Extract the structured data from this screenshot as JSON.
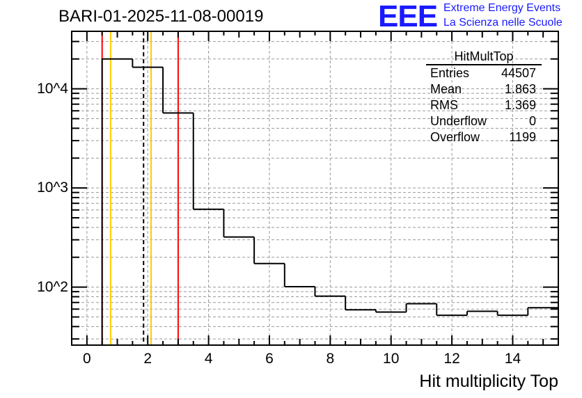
{
  "title": "BARI-01-2025-11-08-00019",
  "logo": {
    "mark": "EEE",
    "line1": "Extreme Energy Events",
    "line2": "La Scienza nelle Scuole"
  },
  "stats": {
    "name": "HitMultTop",
    "rows": [
      {
        "label": "Entries",
        "value": "44507"
      },
      {
        "label": "Mean",
        "value": "1.863"
      },
      {
        "label": "RMS",
        "value": "1.369"
      },
      {
        "label": "Underflow",
        "value": "0"
      },
      {
        "label": "Overflow",
        "value": "1199"
      }
    ]
  },
  "chart_data": {
    "type": "histogram",
    "title": "BARI-01-2025-11-08-00019",
    "xlabel": "Hit multiplicity Top",
    "ylabel": "",
    "xlim": [
      -0.5,
      15.5
    ],
    "ylim": [
      26,
      38000
    ],
    "yscale": "log",
    "grid": true,
    "bin_edges": [
      -0.5,
      0.5,
      1.5,
      2.5,
      3.5,
      4.5,
      5.5,
      6.5,
      7.5,
      8.5,
      9.5,
      10.5,
      11.5,
      12.5,
      13.5,
      14.5,
      15.5
    ],
    "values": [
      0,
      20000,
      16500,
      5700,
      610,
      320,
      173,
      101,
      81,
      59,
      56,
      68,
      52,
      57,
      52,
      62
    ],
    "x_ticks": [
      "0",
      "2",
      "4",
      "6",
      "8",
      "10",
      "12",
      "14"
    ],
    "x_tick_values": [
      0,
      2,
      4,
      6,
      8,
      10,
      12,
      14
    ],
    "y_ticks": [
      "10^2",
      "10^3",
      "10^4"
    ],
    "y_tick_values": [
      100,
      1000,
      10000
    ],
    "vertical_lines": [
      {
        "x": 0.5,
        "color": "#ff0000",
        "style": "solid"
      },
      {
        "x": 3.0,
        "color": "#ff0000",
        "style": "solid"
      },
      {
        "x": 0.78,
        "color": "#ffcc00",
        "style": "solid"
      },
      {
        "x": 2.11,
        "color": "#ffcc00",
        "style": "solid"
      },
      {
        "x": 1.863,
        "color": "#000000",
        "style": "dashed"
      }
    ]
  }
}
